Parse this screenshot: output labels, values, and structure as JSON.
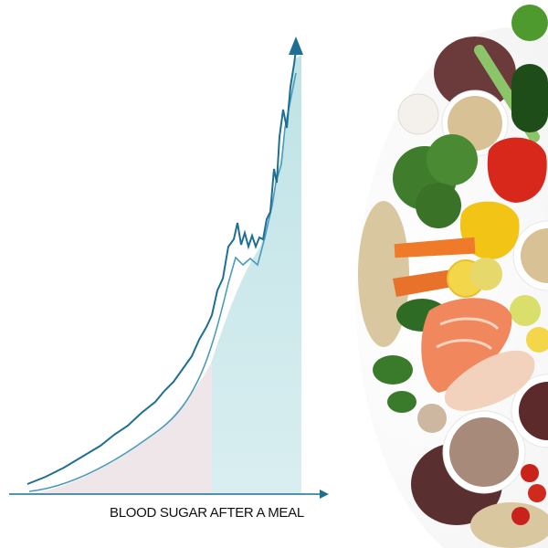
{
  "caption": "BLOOD SUGAR AFTER A MEAL"
}
